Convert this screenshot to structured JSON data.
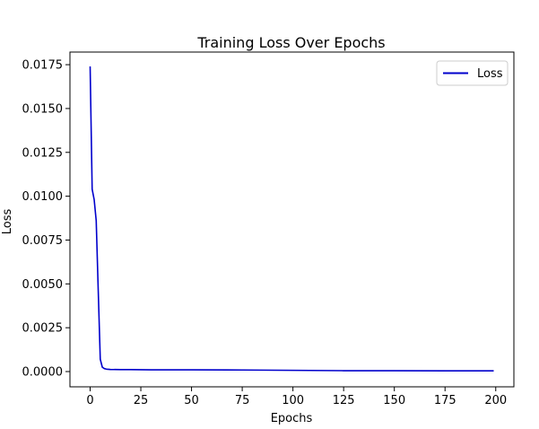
{
  "chart_data": {
    "type": "line",
    "title": "Training Loss Over Epochs",
    "xlabel": "Epochs",
    "ylabel": "Loss",
    "xlim": [
      -9.95,
      208.95
    ],
    "ylim": [
      -0.00087,
      0.01822
    ],
    "xticks": [
      0,
      25,
      50,
      75,
      100,
      125,
      150,
      175,
      200
    ],
    "yticks": [
      0.0,
      0.0025,
      0.005,
      0.0075,
      0.01,
      0.0125,
      0.015,
      0.0175
    ],
    "xtick_labels": [
      "0",
      "25",
      "50",
      "75",
      "100",
      "125",
      "150",
      "175",
      "200"
    ],
    "ytick_labels": [
      "0.0000",
      "0.0025",
      "0.0050",
      "0.0075",
      "0.0100",
      "0.0125",
      "0.0150",
      "0.0175"
    ],
    "grid": false,
    "legend": {
      "position": "top-right"
    },
    "series": [
      {
        "name": "Loss",
        "color": "#0000cc",
        "x": [
          0,
          1,
          2,
          3,
          4,
          5,
          6,
          7,
          8,
          10,
          15,
          20,
          30,
          50,
          75,
          100,
          125,
          150,
          175,
          199
        ],
        "y": [
          0.0174,
          0.0104,
          0.0098,
          0.0086,
          0.0046,
          0.0007,
          0.00025,
          0.00017,
          0.00014,
          0.00012,
          0.00011,
          0.00011,
          0.0001,
          0.0001,
          9e-05,
          7e-05,
          5e-05,
          5e-05,
          4e-05,
          4e-05
        ]
      }
    ]
  }
}
